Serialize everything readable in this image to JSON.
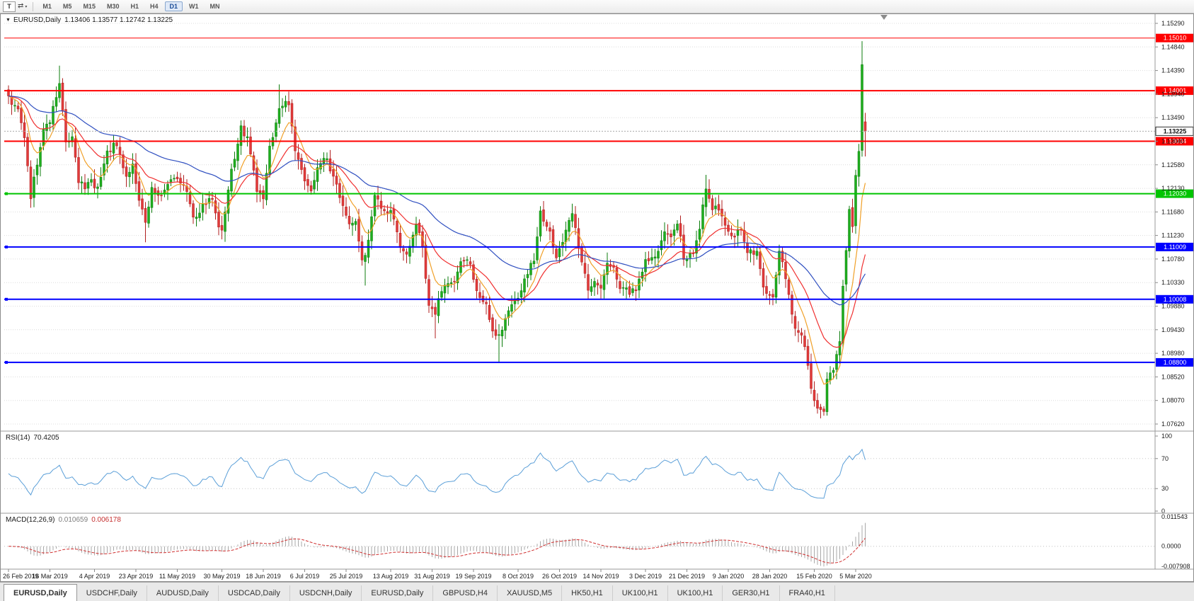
{
  "toolbar": {
    "chart_mode_button": "T",
    "cursor_icon": "⇄",
    "dropdown_caret": "▾",
    "timeframes": [
      "M1",
      "M5",
      "M15",
      "M30",
      "H1",
      "H4",
      "D1",
      "W1",
      "MN"
    ],
    "active_timeframe": "D1"
  },
  "chart_header": {
    "menu_icon": "▼",
    "symbol": "EURUSD,Daily",
    "ohlc": "1.13406 1.13577 1.12742 1.13225"
  },
  "price_scale": {
    "ticks": [
      "1.15290",
      "1.14840",
      "1.14390",
      "1.13940",
      "1.13490",
      "1.13040",
      "1.12580",
      "1.12130",
      "1.11680",
      "1.11230",
      "1.10780",
      "1.10330",
      "1.09880",
      "1.09430",
      "1.08980",
      "1.08520",
      "1.08070",
      "1.07620"
    ],
    "current_price": "1.13225",
    "current_price_value": 1.13225
  },
  "hlines": [
    {
      "price": 1.1501,
      "label": "1.15010",
      "color": "#ff0000",
      "width": 1,
      "marker": false
    },
    {
      "price": 1.14001,
      "label": "1.14001",
      "color": "#ff0000",
      "width": 2,
      "marker": false
    },
    {
      "price": 1.13034,
      "label": "1.13034",
      "color": "#ff0000",
      "width": 2,
      "marker": false
    },
    {
      "price": 1.1203,
      "label": "1.12030",
      "color": "#00c400",
      "width": 2,
      "marker": true
    },
    {
      "price": 1.11009,
      "label": "1.11009",
      "color": "#0000ff",
      "width": 2,
      "marker": true
    },
    {
      "price": 1.10008,
      "label": "1.10008",
      "color": "#0000ff",
      "width": 2,
      "marker": true
    },
    {
      "price": 1.088,
      "label": "1.08800",
      "color": "#0000ff",
      "width": 2,
      "marker": true
    }
  ],
  "rsi": {
    "label": "RSI(14)",
    "value": "70.4205",
    "period": 14,
    "ticks": [
      "100",
      "70",
      "30",
      "0"
    ],
    "levels": [
      70,
      30
    ]
  },
  "macd": {
    "label": "MACD(12,26,9)",
    "value_main": "0.010659",
    "value_signal": "0.006178",
    "fast": 12,
    "slow": 26,
    "signal": 9,
    "max": 0.011543,
    "min": -0.007908,
    "tick_top": "0.011543",
    "tick_zero": "0.0000",
    "tick_bottom": "-0.007908"
  },
  "x_axis": {
    "labels": [
      "26 Feb 2019",
      "16 Mar 2019",
      "4 Apr 2019",
      "23 Apr 2019",
      "11 May 2019",
      "30 May 2019",
      "18 Jun 2019",
      "6 Jul 2019",
      "25 Jul 2019",
      "13 Aug 2019",
      "31 Aug 2019",
      "19 Sep 2019",
      "8 Oct 2019",
      "26 Oct 2019",
      "14 Nov 2019",
      "3 Dec 2019",
      "21 Dec 2019",
      "9 Jan 2020",
      "28 Jan 2020",
      "15 Feb 2020",
      "5 Mar 2020"
    ],
    "last_label_candle": 266
  },
  "tabs": {
    "items": [
      "EURUSD,Daily",
      "USDCHF,Daily",
      "AUDUSD,Daily",
      "USDCAD,Daily",
      "USDCNH,Daily",
      "EURUSD,Daily",
      "GBPUSD,H4",
      "XAUUSD,M5",
      "HK50,H1",
      "UK100,H1",
      "UK100,H1",
      "GER30,H1",
      "FRA40,H1"
    ],
    "active": 0
  },
  "colors": {
    "bull": "#1fae1f",
    "bull_border": "#0c7c0c",
    "bear": "#e13b3b",
    "bear_border": "#b01f1f",
    "ma_fast": "#f0a028",
    "ma_mid": "#f03030",
    "ma_slow": "#2f4fc0",
    "rsi_line": "#5b9fd8",
    "macd_hist": "#a8a8a8",
    "macd_signal": "#d03030",
    "grid": "#dcdcdc",
    "separator": "#9a9a9a",
    "bid_line": "#aaaaaa",
    "axis_text": "#1a1a1a"
  },
  "chart_data": {
    "type": "candlestick",
    "symbol": "EURUSD",
    "timeframe": "Daily",
    "num_candles": 270,
    "seed": 9,
    "noise_step": 0.0022,
    "wick_base": 0.0005,
    "wick_rand": 0.0016,
    "gap_rand": 0.0008,
    "price_range": [
      1.0762,
      1.1529
    ],
    "last_candle": {
      "open": 1.13406,
      "high": 1.13577,
      "low": 1.12742,
      "close": 1.13225
    },
    "moving_averages": [
      {
        "period": 8,
        "color": "#f0a028"
      },
      {
        "period": 21,
        "color": "#f03030"
      },
      {
        "period": 55,
        "color": "#2f4fc0"
      }
    ],
    "anchors": [
      [
        0,
        1.139
      ],
      [
        2,
        1.1372
      ],
      [
        3,
        1.1365
      ],
      [
        5,
        1.131
      ],
      [
        7,
        1.1193
      ],
      [
        8,
        1.1235
      ],
      [
        11,
        1.1327
      ],
      [
        13,
        1.1339
      ],
      [
        16,
        1.1414
      ],
      [
        18,
        1.1302
      ],
      [
        20,
        1.1312
      ],
      [
        22,
        1.1224
      ],
      [
        24,
        1.1212
      ],
      [
        26,
        1.123
      ],
      [
        28,
        1.1216
      ],
      [
        31,
        1.1285
      ],
      [
        33,
        1.13
      ],
      [
        35,
        1.1278
      ],
      [
        37,
        1.1236
      ],
      [
        39,
        1.126
      ],
      [
        41,
        1.119
      ],
      [
        43,
        1.1148
      ],
      [
        45,
        1.1215
      ],
      [
        48,
        1.12
      ],
      [
        51,
        1.123
      ],
      [
        54,
        1.1223
      ],
      [
        56,
        1.1207
      ],
      [
        58,
        1.1158
      ],
      [
        60,
        1.1166
      ],
      [
        62,
        1.1182
      ],
      [
        64,
        1.1192
      ],
      [
        66,
        1.1139
      ],
      [
        67,
        1.1133
      ],
      [
        68,
        1.1168
      ],
      [
        70,
        1.125
      ],
      [
        73,
        1.1333
      ],
      [
        75,
        1.1312
      ],
      [
        78,
        1.1207
      ],
      [
        80,
        1.1193
      ],
      [
        82,
        1.1294
      ],
      [
        85,
        1.1366
      ],
      [
        87,
        1.138
      ],
      [
        88,
        1.1373
      ],
      [
        90,
        1.1285
      ],
      [
        93,
        1.1227
      ],
      [
        95,
        1.1208
      ],
      [
        97,
        1.1253
      ],
      [
        100,
        1.127
      ],
      [
        103,
        1.1221
      ],
      [
        105,
        1.118
      ],
      [
        107,
        1.1145
      ],
      [
        109,
        1.115
      ],
      [
        111,
        1.1076
      ],
      [
        112,
        1.1085
      ],
      [
        115,
        1.12
      ],
      [
        118,
        1.117
      ],
      [
        120,
        1.1171
      ],
      [
        123,
        1.11
      ],
      [
        125,
        1.1087
      ],
      [
        128,
        1.1145
      ],
      [
        130,
        1.1101
      ],
      [
        132,
        1.0989
      ],
      [
        134,
        1.0972
      ],
      [
        137,
        1.1028
      ],
      [
        140,
        1.1035
      ],
      [
        142,
        1.1073
      ],
      [
        145,
        1.1068
      ],
      [
        147,
        1.1017
      ],
      [
        150,
        1.0992
      ],
      [
        152,
        1.094
      ],
      [
        154,
        1.0933
      ],
      [
        157,
        1.0979
      ],
      [
        160,
        1.1003
      ],
      [
        162,
        1.104
      ],
      [
        165,
        1.1074
      ],
      [
        167,
        1.117
      ],
      [
        168,
        1.115
      ],
      [
        170,
        1.1131
      ],
      [
        172,
        1.108
      ],
      [
        174,
        1.111
      ],
      [
        176,
        1.1152
      ],
      [
        177,
        1.1165
      ],
      [
        180,
        1.1072
      ],
      [
        182,
        1.1018
      ],
      [
        184,
        1.1035
      ],
      [
        186,
        1.1022
      ],
      [
        188,
        1.107
      ],
      [
        190,
        1.1062
      ],
      [
        192,
        1.1021
      ],
      [
        195,
        1.101
      ],
      [
        197,
        1.1017
      ],
      [
        200,
        1.1077
      ],
      [
        203,
        1.1082
      ],
      [
        206,
        1.113
      ],
      [
        208,
        1.112
      ],
      [
        210,
        1.1145
      ],
      [
        212,
        1.1077
      ],
      [
        215,
        1.1088
      ],
      [
        217,
        1.1135
      ],
      [
        219,
        1.1212
      ],
      [
        221,
        1.1172
      ],
      [
        224,
        1.116
      ],
      [
        227,
        1.1122
      ],
      [
        230,
        1.1134
      ],
      [
        232,
        1.109
      ],
      [
        235,
        1.1093
      ],
      [
        237,
        1.1024
      ],
      [
        240,
        1.1005
      ],
      [
        242,
        1.1093
      ],
      [
        244,
        1.104
      ],
      [
        246,
        1.0972
      ],
      [
        247,
        1.0945
      ],
      [
        250,
        1.091
      ],
      [
        252,
        1.083
      ],
      [
        254,
        1.0792
      ],
      [
        256,
        1.0786
      ],
      [
        257,
        1.0848
      ],
      [
        259,
        1.0865
      ],
      [
        261,
        1.092
      ],
      [
        262,
        1.1026
      ],
      [
        264,
        1.1173
      ],
      [
        265,
        1.114
      ],
      [
        266,
        1.1238
      ],
      [
        267,
        1.1284
      ],
      [
        268,
        1.145
      ],
      [
        269,
        1.13225
      ]
    ],
    "extremes": {
      "7": {
        "low": 1.1176
      },
      "16": {
        "high": 1.1448
      },
      "43": {
        "low": 1.111
      },
      "85": {
        "high": 1.1412
      },
      "112": {
        "low": 1.1027
      },
      "134": {
        "low": 1.0926
      },
      "154": {
        "low": 1.0879
      },
      "167": {
        "high": 1.1179
      },
      "219": {
        "high": 1.1239
      },
      "256": {
        "low": 1.0778
      },
      "268": {
        "high": 1.1495
      }
    }
  }
}
